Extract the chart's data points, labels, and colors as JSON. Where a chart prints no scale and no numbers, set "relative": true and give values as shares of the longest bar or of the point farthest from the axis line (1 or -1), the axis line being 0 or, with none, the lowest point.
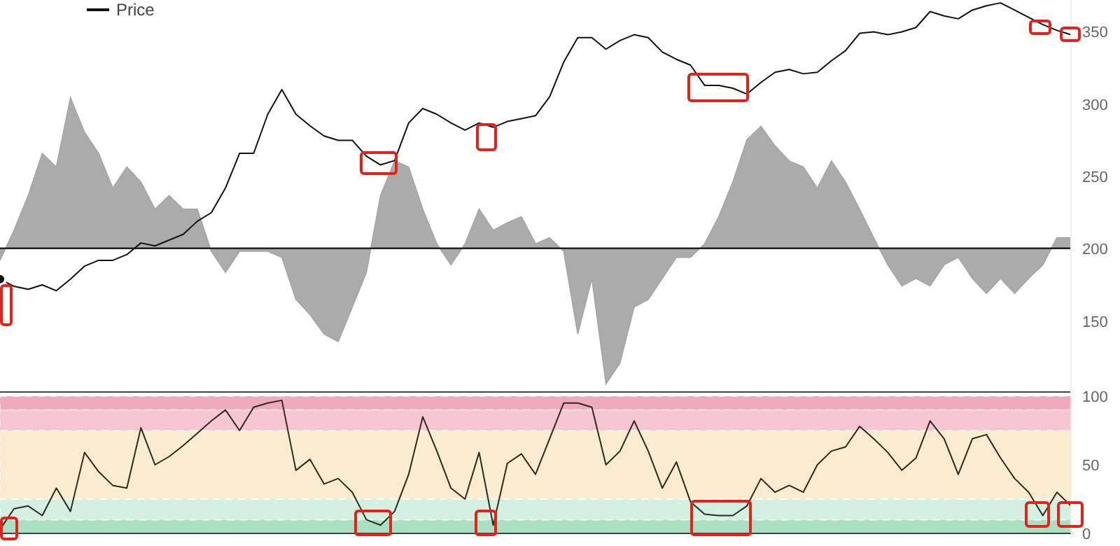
{
  "chart_data": [
    {
      "type": "line",
      "categories": [
        null,
        null,
        null,
        null,
        null,
        null,
        null,
        null,
        null,
        null,
        null,
        null,
        null,
        null,
        null,
        null,
        null,
        null,
        null,
        null,
        null,
        null,
        null,
        null,
        null,
        null,
        null,
        null,
        null,
        null,
        null,
        null,
        null,
        null,
        null,
        null,
        null,
        null,
        null,
        null,
        null,
        null,
        null,
        null,
        null,
        null,
        null,
        null,
        null,
        null,
        null,
        null,
        null,
        null,
        null,
        null,
        null,
        null,
        null,
        null,
        null,
        null,
        null,
        null,
        null,
        null,
        null,
        null,
        null,
        null,
        null,
        null,
        null,
        null,
        null,
        null,
        null
      ],
      "ylim": [
        100,
        372
      ],
      "yticks": [
        150,
        200,
        250,
        300,
        350
      ],
      "tick_labels": "y",
      "legend": "top left",
      "series": [
        {
          "name": "Price",
          "color": "#111111",
          "values": [
            179,
            174,
            172,
            175,
            171,
            179,
            188,
            192,
            192,
            196,
            204,
            202,
            206,
            210,
            219,
            225,
            242,
            266,
            266,
            293,
            310,
            293,
            285,
            278,
            275,
            275,
            264,
            258,
            261,
            287,
            297,
            293,
            287,
            282,
            287,
            284,
            288,
            290,
            292,
            305,
            329,
            346,
            346,
            338,
            344,
            348,
            346,
            336,
            331,
            327,
            313,
            313,
            311,
            307,
            315,
            322,
            324,
            321,
            322,
            330,
            337,
            349,
            350,
            348,
            350,
            353,
            364,
            361,
            359,
            365,
            368,
            370,
            365,
            360,
            355,
            351,
            348
          ]
        }
      ]
    },
    {
      "type": "area",
      "relative": true,
      "categories": [
        null,
        null,
        null,
        null,
        null,
        null,
        null,
        null,
        null,
        null,
        null,
        null,
        null,
        null,
        null,
        null,
        null,
        null,
        null,
        null,
        null,
        null,
        null,
        null,
        null,
        null,
        null,
        null,
        null,
        null,
        null,
        null,
        null,
        null,
        null,
        null,
        null,
        null,
        null,
        null,
        null,
        null,
        null,
        null,
        null,
        null,
        null,
        null,
        null,
        null,
        null,
        null,
        null,
        null,
        null,
        null,
        null,
        null,
        null,
        null,
        null,
        null,
        null,
        null,
        null,
        null,
        null,
        null,
        null,
        null,
        null,
        null,
        null,
        null,
        null,
        null,
        null
      ],
      "series": [
        {
          "color": "#a6a6a6",
          "values": [
            -0.08,
            0.12,
            0.35,
            0.63,
            0.54,
            1,
            0.77,
            0.63,
            0.4,
            0.54,
            0.44,
            0.26,
            0.35,
            0.26,
            0.26,
            -0.02,
            -0.16,
            -0.02,
            -0.02,
            -0.02,
            -0.06,
            -0.34,
            -0.44,
            -0.57,
            -0.62,
            -0.39,
            -0.16,
            0.35,
            0.58,
            0.54,
            0.26,
            0.03,
            -0.11,
            0.03,
            0.26,
            0.12,
            0.17,
            0.21,
            0.03,
            0.07,
            -0.02,
            -0.57,
            -0.2,
            -0.9,
            -0.76,
            -0.39,
            -0.34,
            -0.2,
            -0.06,
            -0.06,
            0.03,
            0.21,
            0.44,
            0.72,
            0.81,
            0.68,
            0.58,
            0.54,
            0.4,
            0.58,
            0.44,
            0.26,
            0.07,
            -0.11,
            -0.25,
            -0.2,
            -0.25,
            -0.11,
            -0.06,
            -0.2,
            -0.3,
            -0.2,
            -0.3,
            -0.2,
            -0.11,
            0.07,
            0.07
          ]
        }
      ]
    },
    {
      "type": "line",
      "categories": [
        null,
        null,
        null,
        null,
        null,
        null,
        null,
        null,
        null,
        null,
        null,
        null,
        null,
        null,
        null,
        null,
        null,
        null,
        null,
        null,
        null,
        null,
        null,
        null,
        null,
        null,
        null,
        null,
        null,
        null,
        null,
        null,
        null,
        null,
        null,
        null,
        null,
        null,
        null,
        null,
        null,
        null,
        null,
        null,
        null,
        null,
        null,
        null,
        null,
        null,
        null,
        null,
        null,
        null,
        null,
        null,
        null,
        null,
        null,
        null,
        null,
        null,
        null,
        null,
        null,
        null,
        null,
        null,
        null,
        null,
        null,
        null,
        null,
        null,
        null,
        null,
        null
      ],
      "ylim": [
        0,
        100
      ],
      "yticks": [
        0,
        50,
        100
      ],
      "tick_labels": "y",
      "bands": [
        {
          "axis": "y",
          "from": 0,
          "to": 10,
          "color": "#a9dfc2"
        },
        {
          "axis": "y",
          "from": 10,
          "to": 25,
          "color": "#d4f0e1"
        },
        {
          "axis": "y",
          "from": 25,
          "to": 75,
          "color": "#fbebd1"
        },
        {
          "axis": "y",
          "from": 75,
          "to": 90,
          "color": "#f6c7d3"
        },
        {
          "axis": "y",
          "from": 90,
          "to": 100,
          "color": "#efaabb"
        }
      ],
      "series": [
        {
          "color": "#2b2b1e",
          "values": [
            3,
            18,
            20,
            13,
            33,
            16,
            59,
            45,
            35,
            33,
            77,
            50,
            56,
            64,
            73,
            82,
            90,
            75,
            92,
            95,
            97,
            46,
            54,
            36,
            40,
            30,
            10,
            6,
            16,
            43,
            85,
            60,
            33,
            25,
            59,
            6,
            51,
            58,
            43,
            69,
            95,
            95,
            92,
            50,
            60,
            82,
            60,
            33,
            52,
            23,
            14,
            13,
            13,
            20,
            40,
            30,
            35,
            30,
            50,
            60,
            63,
            78,
            69,
            59,
            46,
            55,
            82,
            69,
            43,
            69,
            72,
            55,
            40,
            30,
            13,
            30,
            20
          ]
        }
      ]
    }
  ]
}
